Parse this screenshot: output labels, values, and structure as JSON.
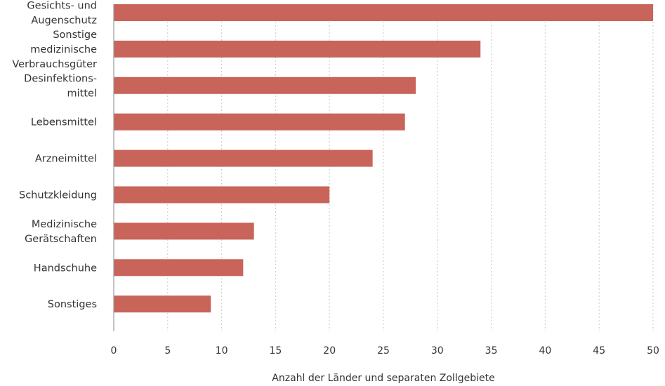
{
  "chart_data": {
    "type": "bar",
    "orientation": "horizontal",
    "categories": [
      [
        "Gesichts- und",
        "Augenschutz"
      ],
      [
        "Sonstige",
        "medizinische",
        "Verbrauchsgüter"
      ],
      [
        "Desinfektions-",
        "mittel"
      ],
      [
        "Lebensmittel"
      ],
      [
        "Arzneimittel"
      ],
      [
        "Schutzkleidung"
      ],
      [
        "Medizinische",
        "Gerätschaften"
      ],
      [
        "Handschuhe"
      ],
      [
        "Sonstiges"
      ]
    ],
    "values": [
      50,
      34,
      28,
      27,
      24,
      20,
      13,
      12,
      9
    ],
    "xlabel": "Anzahl der Länder und separaten Zollgebiete",
    "ylabel": "",
    "xlim": [
      0,
      50
    ],
    "xticks": [
      "0",
      "5",
      "10",
      "15",
      "20",
      "25",
      "30",
      "35",
      "40",
      "45",
      "50"
    ],
    "grid": "vertical dashed",
    "legend": "none",
    "colors": {
      "bar": "#c8645a",
      "text": "#333333",
      "grid": "#c8c8c8"
    }
  }
}
